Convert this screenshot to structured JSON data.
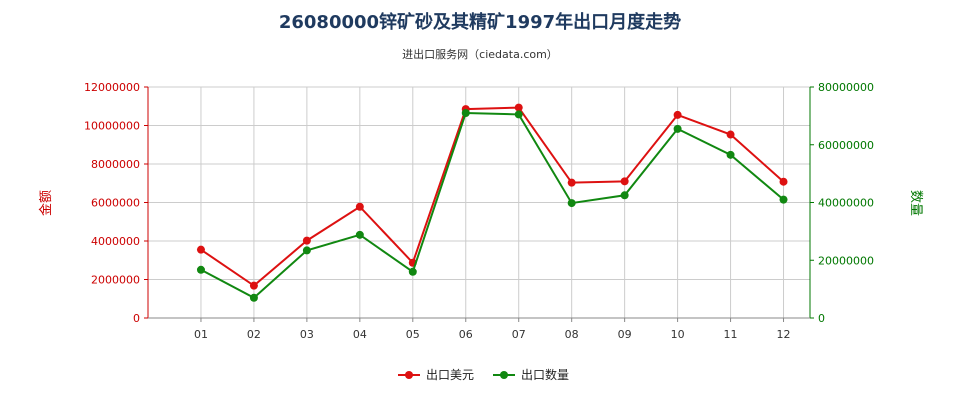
{
  "chart_data": {
    "type": "line",
    "title": "26080000锌矿砂及其精矿1997年出口月度走势",
    "subtitle": "进出口服务网（ciedata.com）",
    "x": [
      "01",
      "02",
      "03",
      "04",
      "05",
      "06",
      "07",
      "08",
      "09",
      "10",
      "11",
      "12"
    ],
    "y_left": {
      "label": "金额",
      "min": 0,
      "max": 12000000,
      "step": 2000000,
      "color": "#cc0000",
      "ticks": [
        "0",
        "2000000",
        "4000000",
        "6000000",
        "8000000",
        "10000000",
        "12000000"
      ]
    },
    "y_right": {
      "label": "数量",
      "min": 0,
      "max": 80000000,
      "step": 20000000,
      "color": "#007700",
      "ticks": [
        "0",
        "20000000",
        "40000000",
        "60000000",
        "80000000"
      ]
    },
    "series": [
      {
        "name": "出口美元",
        "axis": "left",
        "color": "#dd1111",
        "values": [
          3550000,
          1680000,
          4020000,
          5780000,
          2870000,
          10850000,
          10930000,
          7030000,
          7100000,
          10550000,
          9530000,
          7080000
        ]
      },
      {
        "name": "出口数量",
        "axis": "right",
        "color": "#118811",
        "values": [
          16700000,
          7000000,
          23400000,
          28800000,
          16000000,
          71000000,
          70500000,
          39800000,
          42500000,
          65500000,
          56500000,
          41000000
        ]
      }
    ],
    "grid": true,
    "legend": "bottom-center"
  }
}
